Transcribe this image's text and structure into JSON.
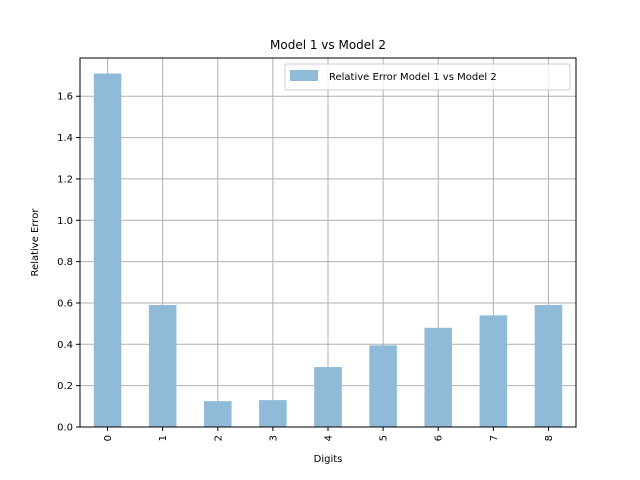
{
  "chart_data": {
    "type": "bar",
    "title": "Model 1 vs Model 2",
    "xlabel": "Digits",
    "ylabel": "Relative Error",
    "categories": [
      "0",
      "1",
      "2",
      "3",
      "4",
      "5",
      "6",
      "7",
      "8"
    ],
    "series": [
      {
        "name": "Relative Error Model 1 vs Model 2",
        "values": [
          1.71,
          0.59,
          0.125,
          0.13,
          0.29,
          0.395,
          0.48,
          0.54,
          0.59
        ],
        "color": "#8fbad8"
      }
    ],
    "ylim": [
      0,
      1.785
    ],
    "yticks": [
      0.0,
      0.2,
      0.4,
      0.6,
      0.8,
      1.0,
      1.2,
      1.4,
      1.6
    ],
    "ytick_labels": [
      "0.0",
      "0.2",
      "0.4",
      "0.6",
      "0.8",
      "1.0",
      "1.2",
      "1.4",
      "1.6"
    ],
    "grid": true,
    "legend_position": "top-right"
  }
}
